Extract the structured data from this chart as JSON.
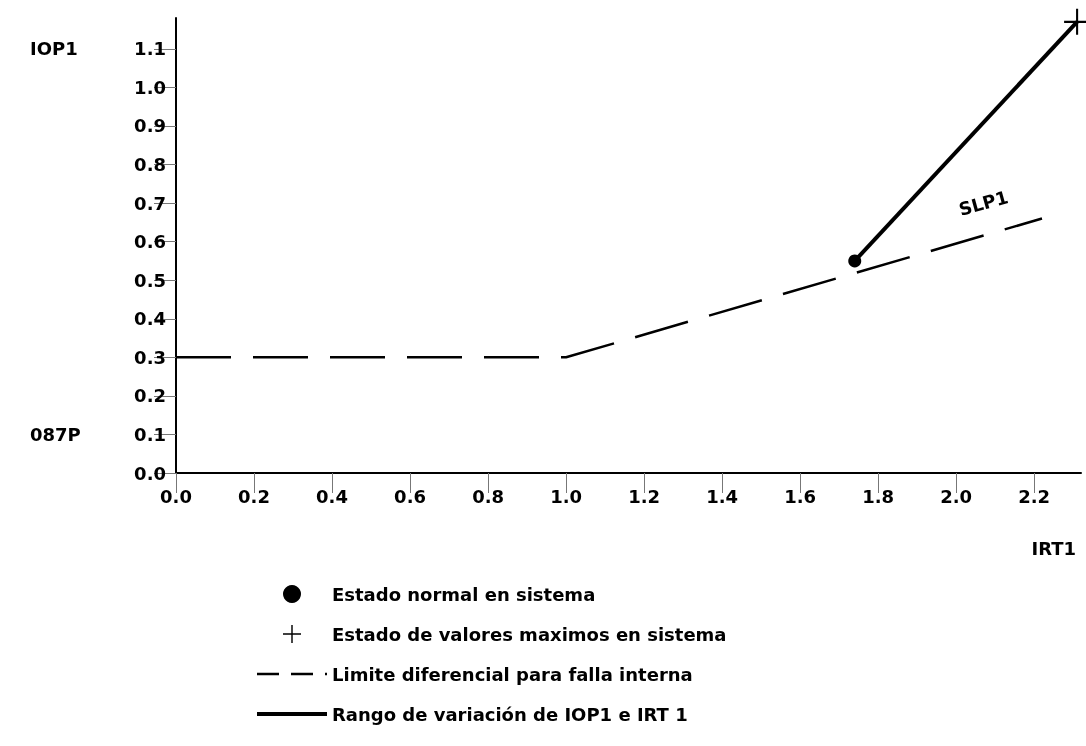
{
  "chart_data": {
    "type": "line",
    "xlabel": "IRT1",
    "ylabel": "IOP1",
    "xlim": [
      0,
      2.32
    ],
    "ylim": [
      0,
      1.18
    ],
    "xticks": [
      {
        "value": 0,
        "label": "0.0"
      },
      0.2,
      0.4,
      0.6,
      0.8,
      {
        "value": 1,
        "label": "1.0"
      },
      1.2,
      1.4,
      1.6,
      1.8,
      {
        "value": 2,
        "label": "2.0"
      },
      2.2
    ],
    "yticks": [
      {
        "value": 0,
        "label": "0.0"
      },
      0.1,
      0.2,
      0.3,
      0.4,
      0.5,
      0.6,
      0.7,
      0.8,
      0.9,
      {
        "value": 1,
        "label": "1.0"
      },
      1.1
    ],
    "grid": false,
    "legend": "bottom",
    "annotations": [
      "SLP1",
      "087P"
    ],
    "series": [
      {
        "name": "Estado normal en sistema",
        "type": "scatter",
        "marker": "circle",
        "color": "#000000",
        "x": [
          1.74
        ],
        "values": [
          0.55
        ]
      },
      {
        "name": "Estado de valores maximos en sistema",
        "type": "scatter",
        "marker": "cross",
        "color": "#000000",
        "x": [
          2.31
        ],
        "values": [
          1.17
        ]
      },
      {
        "name": "Limite diferencial para falla interna",
        "marker": "none",
        "line_style": "dashed",
        "color": "#000000",
        "x": [
          0,
          1,
          2.22
        ],
        "values": [
          0.3,
          0.3,
          0.66
        ]
      },
      {
        "name": "Rango de variación de IOP1 e IRT 1",
        "marker": "none",
        "line_style": "solid",
        "color": "#000000",
        "x": [
          1.74,
          2.31
        ],
        "values": [
          0.55,
          1.17
        ]
      }
    ]
  }
}
